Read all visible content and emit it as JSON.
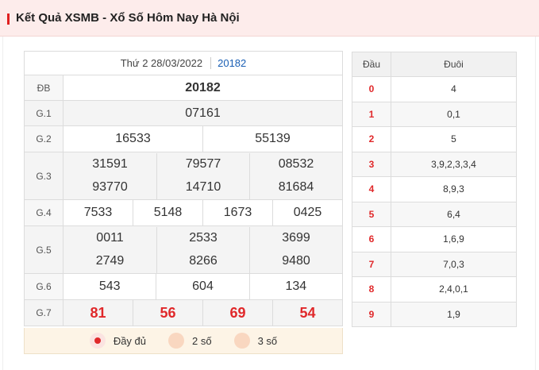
{
  "header": {
    "title": "Kết Quả XSMB - Xổ Số Hôm Nay Hà Nội"
  },
  "results": {
    "date": "Thứ 2 28/03/2022",
    "code": "20182",
    "rows": {
      "db": {
        "label": "ĐB",
        "values": [
          "20182"
        ]
      },
      "g1": {
        "label": "G.1",
        "values": [
          "07161"
        ]
      },
      "g2": {
        "label": "G.2",
        "values": [
          "16533",
          "55139"
        ]
      },
      "g3": {
        "label": "G.3",
        "values": [
          "31591",
          "79577",
          "08532",
          "93770",
          "14710",
          "81684"
        ]
      },
      "g4": {
        "label": "G.4",
        "values": [
          "7533",
          "5148",
          "1673",
          "0425"
        ]
      },
      "g5": {
        "label": "G.5",
        "values": [
          "0011",
          "2533",
          "3699",
          "2749",
          "8266",
          "9480"
        ]
      },
      "g6": {
        "label": "G.6",
        "values": [
          "543",
          "604",
          "134"
        ]
      },
      "g7": {
        "label": "G.7",
        "values": [
          "81",
          "56",
          "69",
          "54"
        ]
      }
    }
  },
  "display_options": {
    "selected": "Đầy đủ",
    "options": [
      "Đầy đủ",
      "2 số",
      "3 số"
    ]
  },
  "dau_duoi": {
    "header_dau": "Đầu",
    "header_duoi": "Đuôi",
    "rows": [
      {
        "dau": "0",
        "duoi": "4"
      },
      {
        "dau": "1",
        "duoi": "0,1"
      },
      {
        "dau": "2",
        "duoi": "5"
      },
      {
        "dau": "3",
        "duoi": "3,9,2,3,3,4"
      },
      {
        "dau": "4",
        "duoi": "8,9,3"
      },
      {
        "dau": "5",
        "duoi": "6,4"
      },
      {
        "dau": "6",
        "duoi": "1,6,9"
      },
      {
        "dau": "7",
        "duoi": "7,0,3"
      },
      {
        "dau": "8",
        "duoi": "2,4,0,1"
      },
      {
        "dau": "9",
        "duoi": "1,9"
      }
    ]
  },
  "colors": {
    "accent": "#e0282a",
    "link": "#1a5fb4",
    "header_bg": "#fdeceb"
  }
}
